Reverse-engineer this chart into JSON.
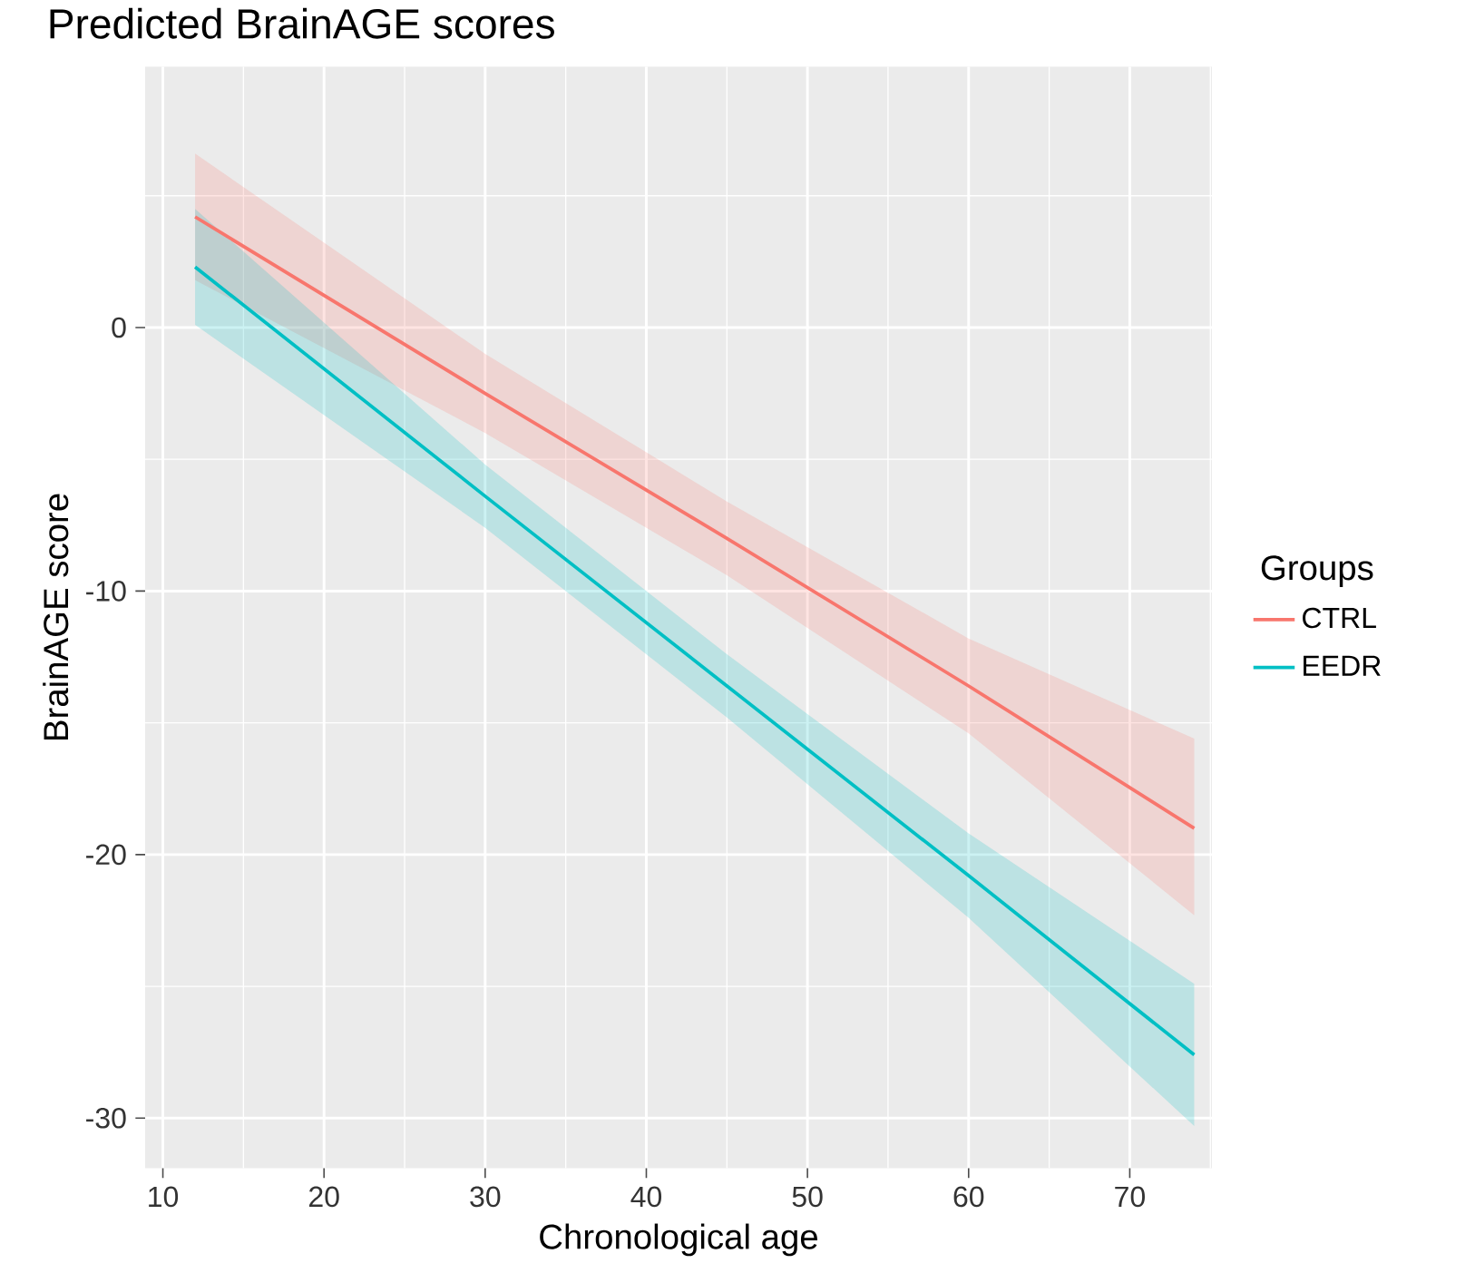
{
  "chart_data": {
    "type": "line",
    "title": "Predicted BrainAGE scores",
    "xlabel": "Chronological age",
    "ylabel": "BrainAGE score",
    "legend_title": "Groups",
    "x": [
      12,
      30,
      45,
      60,
      74
    ],
    "series": [
      {
        "name": "CTRL",
        "color": "#f8766d",
        "values": [
          4.2,
          -2.5,
          -8.0,
          -13.6,
          -19.0
        ],
        "lower": [
          1.8,
          -4.0,
          -9.4,
          -15.4,
          -22.3
        ],
        "upper": [
          6.6,
          -1.0,
          -6.6,
          -11.8,
          -15.6
        ]
      },
      {
        "name": "EEDR",
        "color": "#00bfc4",
        "values": [
          2.3,
          -6.4,
          -13.6,
          -20.8,
          -27.6
        ],
        "lower": [
          0.1,
          -7.6,
          -14.8,
          -22.4,
          -30.3
        ],
        "upper": [
          4.5,
          -5.2,
          -12.4,
          -19.2,
          -24.9
        ]
      }
    ],
    "xlim": [
      8.9,
      75.1
    ],
    "ylim": [
      -31.9,
      9.9
    ],
    "xticks": [
      10,
      20,
      30,
      40,
      50,
      60,
      70
    ],
    "yticks": [
      -30,
      -20,
      -10,
      0
    ],
    "grid": true,
    "legend": "right",
    "marker": "none",
    "line_style": "solid"
  }
}
